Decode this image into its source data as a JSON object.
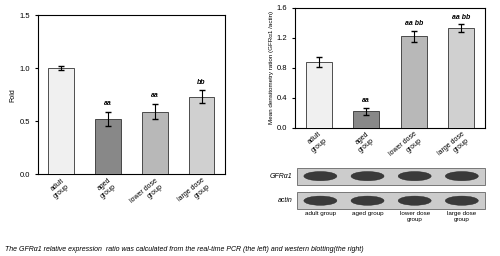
{
  "chart_data": [
    {
      "type": "bar",
      "categories": [
        "adult\ngroup",
        "aged\ngroup",
        "lower dose\ngroup",
        "large dose\ngroup"
      ],
      "values": [
        1.0,
        0.52,
        0.59,
        0.73
      ],
      "errors": [
        0.02,
        0.07,
        0.07,
        0.06
      ],
      "ylabel": "Fold",
      "ylim": [
        0,
        1.5
      ],
      "yticks": [
        {
          "value": 0,
          "label": "0.0"
        },
        0.5,
        {
          "value": 1.0,
          "label": "1.0"
        },
        1.5
      ],
      "annotations": [
        null,
        "aa",
        "aa",
        "bb"
      ],
      "colors": [
        "#f0f0f0",
        "#888888",
        "#b8b8b8",
        "#d0d0d0"
      ],
      "grid": false
    },
    {
      "type": "bar",
      "categories": [
        "adult\ngroup",
        "aged\ngroup",
        "lower dose\ngroup",
        "large dose\ngroup"
      ],
      "values": [
        0.88,
        0.22,
        1.22,
        1.33
      ],
      "errors": [
        0.07,
        0.05,
        0.07,
        0.05
      ],
      "ylabel": "Mean densitometry ration (GFRα1 /actin)",
      "ylim": [
        0,
        1.6
      ],
      "yticks": [
        {
          "value": 0,
          "label": "0.0"
        },
        0.4,
        0.8,
        1.2,
        1.6
      ],
      "annotations": [
        null,
        "aa",
        "aa bb",
        "aa bb"
      ],
      "colors": [
        "#f0f0f0",
        "#888888",
        "#b8b8b8",
        "#d0d0d0"
      ],
      "grid": false
    }
  ],
  "blot": {
    "labels": [
      "GFRα1",
      "actin"
    ],
    "categories": [
      "adult group",
      "aged group",
      "lower dose\ngroup",
      "large dose\ngroup"
    ]
  },
  "caption": "The GFRα1 relative expression  ratio was calculated from the real-time PCR (the left) and western blotting(the right)"
}
